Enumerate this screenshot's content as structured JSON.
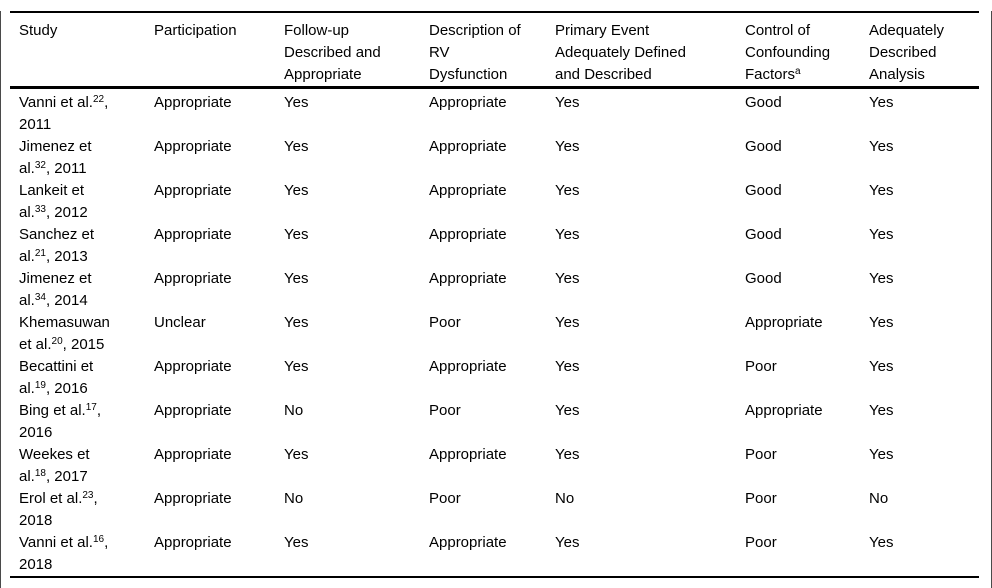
{
  "colors": {
    "background": "#ffffff",
    "text": "#000000",
    "table_rule": "#000000",
    "page_frame_border": "#4a4a4a"
  },
  "table": {
    "columns": [
      {
        "id": "study",
        "parts": [
          {
            "text": "Study"
          }
        ]
      },
      {
        "id": "participation",
        "parts": [
          {
            "text": "Participation"
          }
        ]
      },
      {
        "id": "followup",
        "parts": [
          {
            "text": "Follow-up"
          },
          {
            "break": true
          },
          {
            "text": "Described and"
          },
          {
            "break": true
          },
          {
            "text": "Appropriate"
          }
        ]
      },
      {
        "id": "rv",
        "parts": [
          {
            "text": "Description of"
          },
          {
            "break": true
          },
          {
            "text": "RV"
          },
          {
            "break": true
          },
          {
            "text": "Dysfunction"
          }
        ]
      },
      {
        "id": "primary",
        "parts": [
          {
            "text": "Primary Event"
          },
          {
            "break": true
          },
          {
            "text": "Adequately Defined"
          },
          {
            "break": true
          },
          {
            "text": "and Described"
          }
        ]
      },
      {
        "id": "confounding",
        "parts": [
          {
            "text": "Control of"
          },
          {
            "break": true
          },
          {
            "text": "Confounding"
          },
          {
            "break": true
          },
          {
            "text": "Factors"
          },
          {
            "sup": "a"
          }
        ]
      },
      {
        "id": "analysis",
        "parts": [
          {
            "text": "Adequately"
          },
          {
            "break": true
          },
          {
            "text": "Described"
          },
          {
            "break": true
          },
          {
            "text": "Analysis"
          }
        ]
      }
    ],
    "rows": [
      {
        "study": [
          {
            "text": "Vanni et al."
          },
          {
            "sup": "22"
          },
          {
            "text": ","
          },
          {
            "break": true
          },
          {
            "text": "2011"
          }
        ],
        "participation": "Appropriate",
        "followup": "Yes",
        "rv": "Appropriate",
        "primary": "Yes",
        "confounding": "Good",
        "analysis": "Yes"
      },
      {
        "study": [
          {
            "text": "Jimenez et"
          },
          {
            "break": true
          },
          {
            "text": "al."
          },
          {
            "sup": "32"
          },
          {
            "text": ", 2011"
          }
        ],
        "participation": "Appropriate",
        "followup": "Yes",
        "rv": "Appropriate",
        "primary": "Yes",
        "confounding": "Good",
        "analysis": "Yes"
      },
      {
        "study": [
          {
            "text": "Lankeit et"
          },
          {
            "break": true
          },
          {
            "text": "al."
          },
          {
            "sup": "33"
          },
          {
            "text": ", 2012"
          }
        ],
        "participation": "Appropriate",
        "followup": "Yes",
        "rv": "Appropriate",
        "primary": "Yes",
        "confounding": "Good",
        "analysis": "Yes"
      },
      {
        "study": [
          {
            "text": "Sanchez et"
          },
          {
            "break": true
          },
          {
            "text": "al."
          },
          {
            "sup": "21"
          },
          {
            "text": ", 2013"
          }
        ],
        "participation": "Appropriate",
        "followup": "Yes",
        "rv": "Appropriate",
        "primary": "Yes",
        "confounding": "Good",
        "analysis": "Yes"
      },
      {
        "study": [
          {
            "text": "Jimenez et"
          },
          {
            "break": true
          },
          {
            "text": "al."
          },
          {
            "sup": "34"
          },
          {
            "text": ", 2014"
          }
        ],
        "participation": "Appropriate",
        "followup": "Yes",
        "rv": "Appropriate",
        "primary": "Yes",
        "confounding": "Good",
        "analysis": "Yes"
      },
      {
        "study": [
          {
            "text": "Khemasuwan"
          },
          {
            "break": true
          },
          {
            "text": "et al."
          },
          {
            "sup": "20"
          },
          {
            "text": ", 2015"
          }
        ],
        "participation": "Unclear",
        "followup": "Yes",
        "rv": "Poor",
        "primary": "Yes",
        "confounding": "Appropriate",
        "analysis": "Yes"
      },
      {
        "study": [
          {
            "text": "Becattini et"
          },
          {
            "break": true
          },
          {
            "text": "al."
          },
          {
            "sup": "19"
          },
          {
            "text": ", 2016"
          }
        ],
        "participation": "Appropriate",
        "followup": "Yes",
        "rv": "Appropriate",
        "primary": "Yes",
        "confounding": "Poor",
        "analysis": "Yes"
      },
      {
        "study": [
          {
            "text": "Bing et al."
          },
          {
            "sup": "17"
          },
          {
            "text": ","
          },
          {
            "break": true
          },
          {
            "text": "2016"
          }
        ],
        "participation": "Appropriate",
        "followup": "No",
        "rv": "Poor",
        "primary": "Yes",
        "confounding": "Appropriate",
        "analysis": "Yes"
      },
      {
        "study": [
          {
            "text": "Weekes et"
          },
          {
            "break": true
          },
          {
            "text": "al."
          },
          {
            "sup": "18"
          },
          {
            "text": ", 2017"
          }
        ],
        "participation": "Appropriate",
        "followup": "Yes",
        "rv": "Appropriate",
        "primary": "Yes",
        "confounding": "Poor",
        "analysis": "Yes"
      },
      {
        "study": [
          {
            "text": "Erol et al."
          },
          {
            "sup": "23"
          },
          {
            "text": ","
          },
          {
            "break": true
          },
          {
            "text": "2018"
          }
        ],
        "participation": "Appropriate",
        "followup": "No",
        "rv": "Poor",
        "primary": "No",
        "confounding": "Poor",
        "analysis": "No"
      },
      {
        "study": [
          {
            "text": "Vanni et al."
          },
          {
            "sup": "16"
          },
          {
            "text": ","
          },
          {
            "break": true
          },
          {
            "text": "2018"
          }
        ],
        "participation": "Appropriate",
        "followup": "Yes",
        "rv": "Appropriate",
        "primary": "Yes",
        "confounding": "Poor",
        "analysis": "Yes"
      }
    ]
  }
}
